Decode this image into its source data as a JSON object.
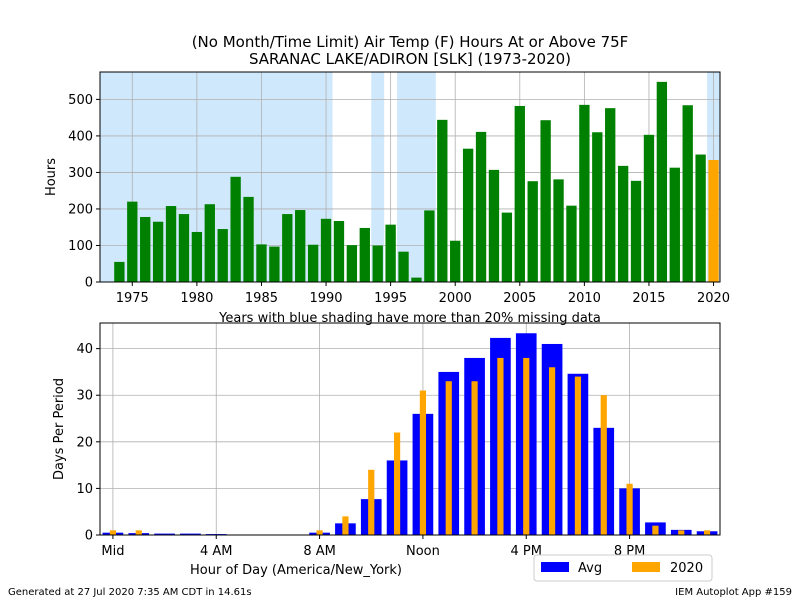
{
  "header": {
    "title_line1": "(No Month/Time Limit) Air Temp (F) Hours At or Above 75F",
    "title_line2": "SARANAC LAKE/ADIRON [SLK] (1973-2020)"
  },
  "footer": {
    "left": "Generated at 27 Jul 2020 7:35 AM CDT in 14.61s",
    "right": "IEM Autoplot App #159"
  },
  "chart_data": [
    {
      "type": "bar",
      "ylabel": "Hours",
      "xlabel": "Years with blue shading have more than 20% missing data",
      "xlim": [
        1972.5,
        2020.5
      ],
      "ylim": [
        0,
        575
      ],
      "yticks": [
        0,
        100,
        200,
        300,
        400,
        500
      ],
      "xticks": [
        1975,
        1980,
        1985,
        1990,
        1995,
        2000,
        2005,
        2010,
        2015,
        2020
      ],
      "grid": true,
      "colors": {
        "bars": "#008000",
        "highlight": "#ffa500",
        "shading": "#cfe8fb"
      },
      "highlight_year": 2020,
      "shaded_ranges": [
        [
          1972.5,
          1990.5
        ],
        [
          1993.5,
          1994.5
        ],
        [
          1995.5,
          1998.5
        ],
        [
          2019.5,
          2020.5
        ]
      ],
      "years": [
        1974,
        1975,
        1976,
        1977,
        1978,
        1979,
        1980,
        1981,
        1982,
        1983,
        1984,
        1985,
        1986,
        1987,
        1988,
        1989,
        1990,
        1991,
        1992,
        1993,
        1994,
        1995,
        1996,
        1997,
        1998,
        1999,
        2000,
        2001,
        2002,
        2003,
        2004,
        2005,
        2006,
        2007,
        2008,
        2009,
        2010,
        2011,
        2012,
        2013,
        2014,
        2015,
        2016,
        2017,
        2018,
        2019,
        2020
      ],
      "values": [
        55,
        220,
        178,
        165,
        208,
        186,
        137,
        213,
        145,
        288,
        233,
        103,
        97,
        186,
        197,
        102,
        173,
        167,
        101,
        148,
        100,
        157,
        83,
        12,
        196,
        444,
        113,
        365,
        411,
        307,
        190,
        482,
        276,
        443,
        281,
        209,
        485,
        410,
        476,
        318,
        277,
        403,
        548,
        313,
        484,
        349,
        334
      ]
    },
    {
      "type": "bar",
      "ylabel": "Days Per Period",
      "xlabel": "Hour of Day (America/New_York)",
      "xlim": [
        -0.5,
        23.5
      ],
      "ylim": [
        0,
        45.5
      ],
      "yticks": [
        0,
        10,
        20,
        30,
        40
      ],
      "xticks": [
        0,
        4,
        8,
        12,
        16,
        20
      ],
      "xticklabels": [
        "Mid",
        "4 AM",
        "8 AM",
        "Noon",
        "4 PM",
        "8 PM"
      ],
      "grid": true,
      "legend": "bottom-right",
      "hours": [
        0,
        1,
        2,
        3,
        4,
        5,
        6,
        7,
        8,
        9,
        10,
        11,
        12,
        13,
        14,
        15,
        16,
        17,
        18,
        19,
        20,
        21,
        22,
        23
      ],
      "series": [
        {
          "name": "Avg",
          "color": "#0000ff",
          "values": [
            0.5,
            0.4,
            0.3,
            0.3,
            0.2,
            0.1,
            0.1,
            0.1,
            0.5,
            2.5,
            7.7,
            16,
            26,
            35,
            38,
            42.3,
            43.3,
            41,
            34.6,
            23,
            10,
            2.7,
            1.1,
            0.8
          ]
        },
        {
          "name": "2020",
          "color": "#ffa500",
          "values": [
            1,
            1,
            0,
            0,
            0,
            0,
            0,
            0,
            1,
            4,
            14,
            22,
            31,
            33,
            33,
            38,
            38,
            36,
            34,
            30,
            11,
            2,
            1,
            1
          ]
        }
      ]
    }
  ]
}
